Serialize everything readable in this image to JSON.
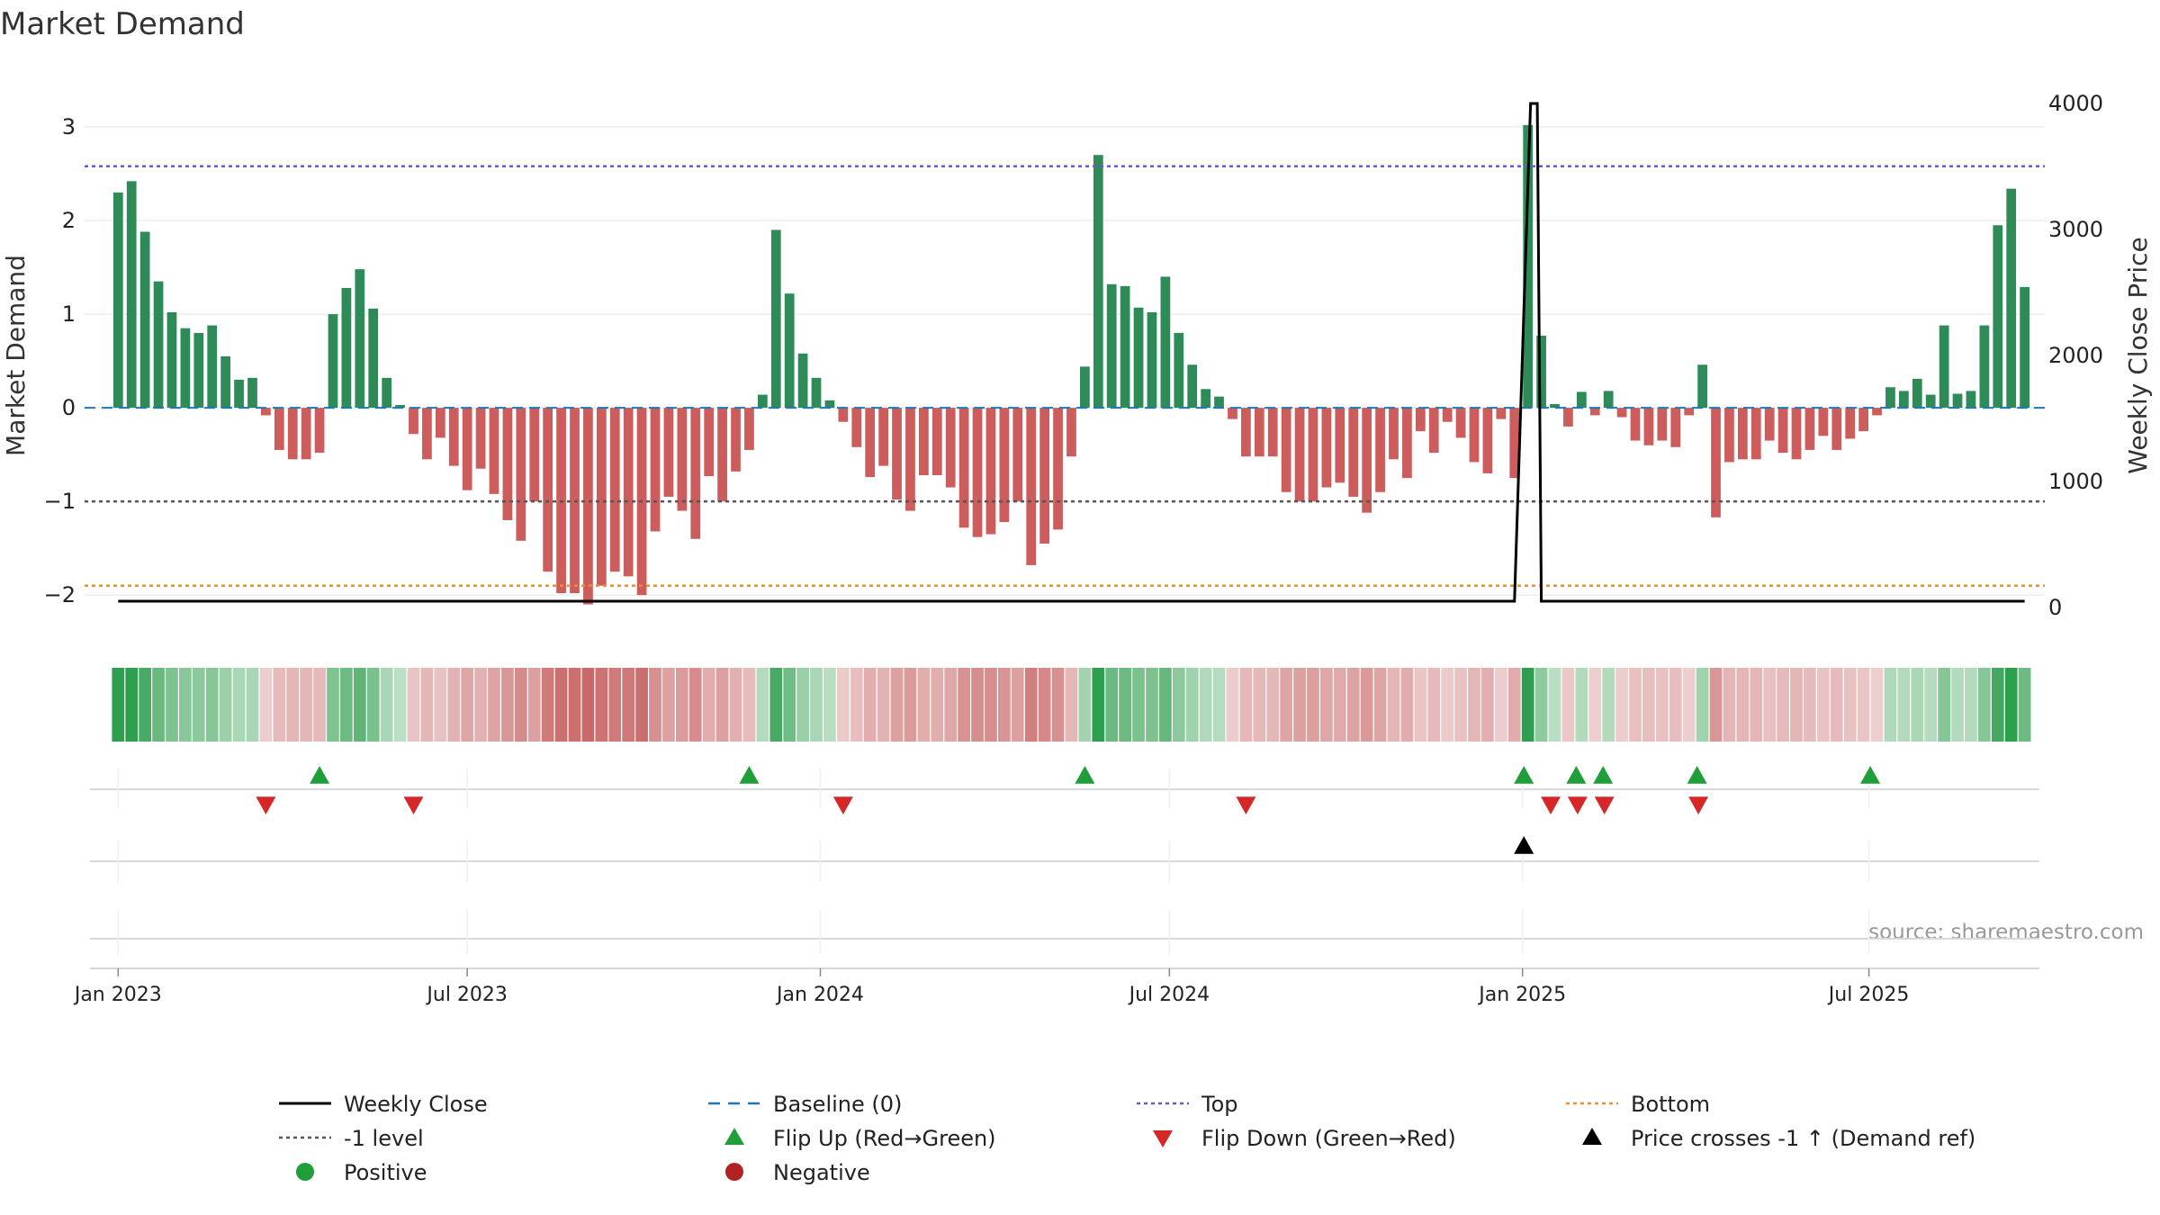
{
  "chart_data": {
    "type": "bar",
    "title": "Market Demand",
    "ylabel": "Market Demand",
    "y2label": "Weekly Close Price",
    "ylim": [
      -2.2,
      3.25
    ],
    "y2lim": [
      -50,
      4000
    ],
    "yticks": [
      3,
      2,
      1,
      0,
      -1,
      -2
    ],
    "ytick_labels": [
      "3",
      "2",
      "1",
      "0",
      "−1",
      "−2"
    ],
    "y2ticks": [
      0,
      1000,
      2000,
      3000,
      4000
    ],
    "y2tick_labels": [
      "0",
      "1000",
      "2000",
      "3000",
      "4000"
    ],
    "xlim_weeks": [
      -2.5,
      143.5
    ],
    "xticks": [
      {
        "label": "Jan 2023",
        "week": 0
      },
      {
        "label": "Jul 2023",
        "week": 26
      },
      {
        "label": "Jan 2024",
        "week": 52.3
      },
      {
        "label": "Jul 2024",
        "week": 78.3
      },
      {
        "label": "Jan 2025",
        "week": 104.6
      },
      {
        "label": "Jul 2025",
        "week": 130.4
      }
    ],
    "start_week": "2022-12-26",
    "reference_lines": {
      "baseline": 0,
      "top": 2.58,
      "minus_one": -1,
      "bottom": -1.9
    },
    "series": [
      {
        "name": "Market Demand",
        "values": [
          2.3,
          2.42,
          1.88,
          1.35,
          1.02,
          0.85,
          0.8,
          0.88,
          0.55,
          0.3,
          0.32,
          -0.08,
          -0.45,
          -0.55,
          -0.55,
          -0.48,
          1.0,
          1.28,
          1.48,
          1.06,
          0.32,
          0.03,
          -0.28,
          -0.55,
          -0.32,
          -0.62,
          -0.88,
          -0.65,
          -0.92,
          -1.2,
          -1.42,
          -1.0,
          -1.75,
          -1.98,
          -1.98,
          -2.1,
          -1.9,
          -1.75,
          -1.8,
          -2.0,
          -1.32,
          -0.95,
          -1.1,
          -1.4,
          -0.73,
          -1.0,
          -0.68,
          -0.45,
          0.14,
          1.9,
          1.22,
          0.58,
          0.32,
          0.08,
          -0.15,
          -0.42,
          -0.74,
          -0.62,
          -0.98,
          -1.1,
          -0.72,
          -0.72,
          -0.85,
          -1.28,
          -1.38,
          -1.35,
          -1.22,
          -1.0,
          -1.68,
          -1.45,
          -1.3,
          -0.52,
          0.44,
          2.7,
          1.32,
          1.3,
          1.07,
          1.02,
          1.4,
          0.8,
          0.46,
          0.2,
          0.12,
          -0.12,
          -0.52,
          -0.52,
          -0.52,
          -0.9,
          -1.0,
          -1.0,
          -0.85,
          -0.8,
          -0.95,
          -1.12,
          -0.9,
          -0.55,
          -0.75,
          -0.25,
          -0.48,
          -0.15,
          -0.32,
          -0.58,
          -0.7,
          -0.12,
          -0.75,
          3.02,
          0.77,
          0.04,
          -0.2,
          0.17,
          -0.08,
          0.18,
          -0.1,
          -0.35,
          -0.4,
          -0.35,
          -0.42,
          -0.08,
          0.46,
          -1.17,
          -0.58,
          -0.55,
          -0.55,
          -0.35,
          -0.48,
          -0.55,
          -0.45,
          -0.3,
          -0.45,
          -0.33,
          -0.25,
          -0.08,
          0.22,
          0.18,
          0.31,
          0.14,
          0.88,
          0.15,
          0.18,
          0.88,
          1.95,
          2.34,
          1.29
        ]
      },
      {
        "name": "Weekly Close",
        "axis": "right",
        "base": 50,
        "spike": {
          "from_week": 104,
          "to_week": 106,
          "peak_week": 105.5,
          "peak": 4000
        }
      }
    ],
    "heat_strip": "demand colour per week (green positive, red negative)",
    "signal_rows": {
      "flip_up_weeks": [
        15,
        47,
        72,
        104.7,
        108.6,
        110.6,
        117.6,
        130.5
      ],
      "flip_down_weeks": [
        11,
        22,
        54,
        84,
        106.7,
        108.7,
        110.7,
        117.7
      ],
      "price_cross_weeks": [
        104.7
      ]
    },
    "colors": {
      "positive_bar": "#2e8b57",
      "negative_bar": "#cd5c5c",
      "close_line": "#000000",
      "baseline": "#1f77b4",
      "top_line": "#6a5acd",
      "minus_one_line": "#555555",
      "bottom_line": "#e69138",
      "flip_up": "#1f9e3a",
      "flip_down": "#d62728",
      "price_cross": "#000000",
      "positive_dot": "#1f9e3a",
      "negative_dot": "#b22222"
    },
    "legend": [
      {
        "key": "close",
        "label": "Weekly Close"
      },
      {
        "key": "baseline",
        "label": "Baseline (0)"
      },
      {
        "key": "top",
        "label": "Top"
      },
      {
        "key": "bottom",
        "label": "Bottom"
      },
      {
        "key": "minus1",
        "label": "-1 level"
      },
      {
        "key": "flipup",
        "label": "Flip Up (Red→Green)"
      },
      {
        "key": "flipdown",
        "label": "Flip Down (Green→Red)"
      },
      {
        "key": "cross",
        "label": "Price crosses -1 ↑ (Demand ref)"
      },
      {
        "key": "pos",
        "label": "Positive"
      },
      {
        "key": "neg",
        "label": "Negative"
      }
    ],
    "annotation": "source: sharemaestro.com"
  }
}
